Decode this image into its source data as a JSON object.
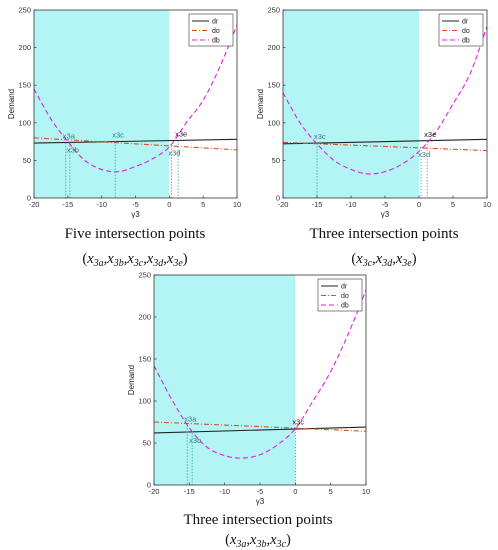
{
  "chart_data": [
    {
      "type": "line",
      "xlabel": "γ3",
      "ylabel": "Demand",
      "xlim": [
        -20,
        10
      ],
      "ylim": [
        0,
        250
      ],
      "xticks": [
        -20,
        -15,
        -10,
        -5,
        0,
        5,
        10
      ],
      "yticks": [
        0,
        50,
        100,
        150,
        200,
        250
      ],
      "shaded_region": {
        "x_from": -20,
        "x_to": 0,
        "color": "#b3f5f5"
      },
      "legend": {
        "position": "top-right",
        "entries": [
          "dr",
          "do",
          "db"
        ]
      },
      "series": [
        {
          "name": "dr",
          "style": "solid",
          "color": "#222222",
          "x": [
            -20,
            10
          ],
          "y": [
            73,
            78
          ]
        },
        {
          "name": "do",
          "style": "dash-dot",
          "color": "#d9501a",
          "x": [
            -20,
            10
          ],
          "y": [
            80,
            64
          ]
        },
        {
          "name": "db",
          "style": "dashed",
          "color": "#dd22dd",
          "x": [
            -20,
            -17.5,
            -15,
            -12.5,
            -10,
            -7.5,
            -5,
            -2.5,
            0,
            2.5,
            5,
            7.5,
            10
          ],
          "y": [
            145,
            105,
            75,
            50,
            38,
            35,
            42,
            52,
            68,
            100,
            130,
            175,
            230
          ]
        }
      ],
      "annotations": [
        {
          "label": "x3a",
          "x": -15.3,
          "y": 73.5,
          "drop": true
        },
        {
          "label": "x3b",
          "x": -14.7,
          "y": 74,
          "drop": true
        },
        {
          "label": "x3c",
          "x": -8,
          "y": 75,
          "drop": true
        },
        {
          "label": "x3d",
          "x": 0.3,
          "y": 70,
          "drop": true
        },
        {
          "label": "x3e",
          "x": 1.3,
          "y": 76.5,
          "drop": true
        }
      ],
      "caption": "Five intersection points",
      "caption_math": [
        "x",
        "3a",
        "x",
        "3b",
        "x",
        "3c",
        "x",
        "3d",
        "x",
        "3e"
      ]
    },
    {
      "type": "line",
      "xlabel": "γ3",
      "ylabel": "Demand",
      "xlim": [
        -20,
        10
      ],
      "ylim": [
        0,
        250
      ],
      "xticks": [
        -20,
        -15,
        -10,
        -5,
        0,
        5,
        10
      ],
      "yticks": [
        0,
        50,
        100,
        150,
        200,
        250
      ],
      "shaded_region": {
        "x_from": -20,
        "x_to": 0,
        "color": "#b3f5f5"
      },
      "legend": {
        "position": "top-right",
        "entries": [
          "dr",
          "do",
          "db"
        ]
      },
      "series": [
        {
          "name": "dr",
          "style": "solid",
          "color": "#222222",
          "x": [
            -20,
            10
          ],
          "y": [
            72,
            78
          ]
        },
        {
          "name": "do",
          "style": "dash-dot",
          "color": "#d9501a",
          "x": [
            -20,
            10
          ],
          "y": [
            74,
            63
          ]
        },
        {
          "name": "db",
          "style": "dashed",
          "color": "#dd22dd",
          "x": [
            -20,
            -17.5,
            -15,
            -12.5,
            -10,
            -7.5,
            -5,
            -2.5,
            0,
            2.5,
            5,
            7.5,
            10
          ],
          "y": [
            140,
            100,
            72,
            50,
            38,
            32,
            35,
            45,
            62,
            88,
            125,
            165,
            228
          ]
        }
      ],
      "annotations": [
        {
          "label": "x3c",
          "x": -15,
          "y": 73,
          "drop": true
        },
        {
          "label": "x3d",
          "x": 0.3,
          "y": 68,
          "drop": true
        },
        {
          "label": "x3e",
          "x": 1.2,
          "y": 76,
          "drop": true
        }
      ],
      "caption": "Three intersection points",
      "caption_math": [
        "x",
        "3c",
        "x",
        "3d",
        "x",
        "3e"
      ]
    },
    {
      "type": "line",
      "xlabel": "γ3",
      "ylabel": "Demand",
      "xlim": [
        -20,
        10
      ],
      "ylim": [
        0,
        250
      ],
      "xticks": [
        -20,
        -15,
        -10,
        -5,
        0,
        5,
        10
      ],
      "yticks": [
        0,
        50,
        100,
        150,
        200,
        250
      ],
      "shaded_region": {
        "x_from": -20,
        "x_to": 0,
        "color": "#b3f5f5"
      },
      "legend": {
        "position": "top-right",
        "entries": [
          "dr",
          "do",
          "db"
        ]
      },
      "series": [
        {
          "name": "dr",
          "style": "solid",
          "color": "#222222",
          "x": [
            -20,
            10
          ],
          "y": [
            62,
            69
          ]
        },
        {
          "name": "do",
          "style": "dash-dot",
          "color": "#d9501a",
          "x": [
            -20,
            10
          ],
          "y": [
            75,
            64
          ]
        },
        {
          "name": "db",
          "style": "dashed",
          "color": "#dd22dd",
          "x": [
            -20,
            -17.5,
            -15,
            -12.5,
            -10,
            -7.5,
            -5,
            -2.5,
            0,
            2.5,
            5,
            7.5,
            10
          ],
          "y": [
            142,
            102,
            68,
            45,
            35,
            32,
            36,
            48,
            67,
            100,
            135,
            180,
            232
          ]
        }
      ],
      "annotations": [
        {
          "label": "x3a",
          "x": -15.3,
          "y": 71,
          "drop": true
        },
        {
          "label": "x3b",
          "x": -14.6,
          "y": 62,
          "drop": true
        },
        {
          "label": "x3c",
          "x": 0,
          "y": 67,
          "drop": true
        }
      ],
      "caption": "Three intersection points",
      "caption_math": [
        "x",
        "3a",
        "x",
        "3b",
        "x",
        "3c"
      ]
    }
  ]
}
